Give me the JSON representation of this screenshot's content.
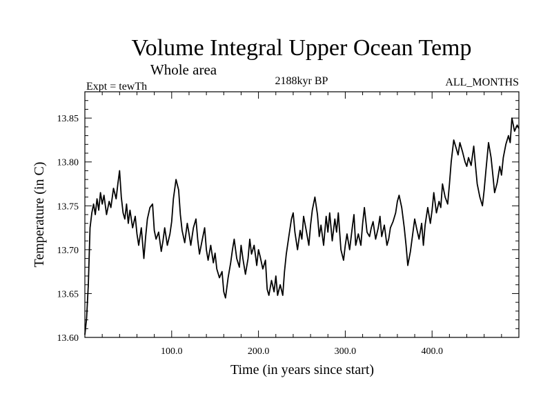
{
  "chart_data": {
    "type": "line",
    "title": "Volume Integral Upper Ocean Temp",
    "subtitle": "Whole area",
    "experiment_label": "Expt = tewTh",
    "period_label": "2188kyr BP",
    "months_label": "ALL_MONTHS",
    "xlabel": "Time (in years since start)",
    "ylabel": "Temperature (in C)",
    "xlim": [
      0,
      500
    ],
    "ylim": [
      13.6,
      13.88
    ],
    "x_ticks": [
      100,
      200,
      300,
      400
    ],
    "x_tick_labels": [
      "100.0",
      "200.0",
      "300.0",
      "400.0"
    ],
    "y_ticks": [
      13.6,
      13.65,
      13.7,
      13.75,
      13.8,
      13.85
    ],
    "y_tick_labels": [
      "13.60",
      "13.65",
      "13.70",
      "13.75",
      "13.80",
      "13.85"
    ],
    "series": [
      {
        "name": "Volume integral upper ocean temperature",
        "x": [
          0,
          2,
          4,
          6,
          8,
          10,
          12,
          14,
          16,
          18,
          20,
          22,
          25,
          28,
          30,
          33,
          36,
          38,
          40,
          42,
          44,
          46,
          48,
          50,
          52,
          55,
          58,
          60,
          62,
          65,
          68,
          70,
          72,
          75,
          78,
          80,
          82,
          85,
          88,
          90,
          92,
          95,
          98,
          100,
          102,
          105,
          108,
          110,
          112,
          115,
          118,
          120,
          122,
          125,
          128,
          130,
          132,
          135,
          138,
          140,
          142,
          145,
          148,
          150,
          152,
          155,
          158,
          160,
          162,
          165,
          168,
          170,
          172,
          175,
          178,
          180,
          182,
          185,
          188,
          190,
          192,
          195,
          198,
          200,
          202,
          205,
          208,
          210,
          212,
          215,
          218,
          220,
          222,
          225,
          228,
          230,
          232,
          235,
          238,
          240,
          242,
          245,
          248,
          250,
          252,
          255,
          258,
          260,
          262,
          265,
          268,
          270,
          272,
          275,
          278,
          280,
          282,
          285,
          288,
          290,
          292,
          295,
          298,
          300,
          302,
          305,
          308,
          310,
          312,
          315,
          318,
          320,
          322,
          325,
          328,
          330,
          332,
          335,
          338,
          340,
          342,
          345,
          348,
          350,
          352,
          355,
          358,
          360,
          362,
          365,
          368,
          370,
          372,
          375,
          378,
          380,
          382,
          385,
          388,
          390,
          392,
          395,
          398,
          400,
          402,
          405,
          408,
          410,
          412,
          415,
          418,
          420,
          422,
          425,
          428,
          430,
          432,
          435,
          438,
          440,
          442,
          445,
          448,
          450,
          452,
          455,
          458,
          460,
          462,
          465,
          468,
          470,
          472,
          475,
          478,
          480,
          482,
          485,
          488,
          490,
          492,
          495,
          498,
          500
        ],
        "values": [
          13.603,
          13.622,
          13.66,
          13.725,
          13.742,
          13.752,
          13.74,
          13.758,
          13.745,
          13.765,
          13.752,
          13.762,
          13.74,
          13.755,
          13.748,
          13.77,
          13.758,
          13.775,
          13.79,
          13.76,
          13.742,
          13.735,
          13.752,
          13.73,
          13.745,
          13.725,
          13.738,
          13.718,
          13.705,
          13.725,
          13.69,
          13.715,
          13.735,
          13.748,
          13.752,
          13.722,
          13.712,
          13.72,
          13.698,
          13.71,
          13.725,
          13.705,
          13.718,
          13.732,
          13.758,
          13.78,
          13.768,
          13.74,
          13.722,
          13.708,
          13.73,
          13.718,
          13.705,
          13.725,
          13.735,
          13.712,
          13.695,
          13.71,
          13.725,
          13.7,
          13.688,
          13.705,
          13.685,
          13.696,
          13.678,
          13.668,
          13.675,
          13.652,
          13.645,
          13.668,
          13.685,
          13.7,
          13.712,
          13.69,
          13.68,
          13.705,
          13.69,
          13.672,
          13.69,
          13.712,
          13.695,
          13.705,
          13.682,
          13.7,
          13.692,
          13.678,
          13.688,
          13.655,
          13.648,
          13.665,
          13.652,
          13.67,
          13.648,
          13.66,
          13.648,
          13.675,
          13.695,
          13.715,
          13.735,
          13.742,
          13.72,
          13.7,
          13.722,
          13.712,
          13.738,
          13.722,
          13.705,
          13.728,
          13.745,
          13.76,
          13.74,
          13.715,
          13.728,
          13.705,
          13.738,
          13.72,
          13.742,
          13.71,
          13.735,
          13.72,
          13.742,
          13.7,
          13.688,
          13.705,
          13.718,
          13.7,
          13.725,
          13.74,
          13.705,
          13.718,
          13.705,
          13.73,
          13.748,
          13.72,
          13.715,
          13.725,
          13.732,
          13.712,
          13.725,
          13.738,
          13.715,
          13.728,
          13.705,
          13.712,
          13.725,
          13.732,
          13.742,
          13.755,
          13.762,
          13.748,
          13.725,
          13.705,
          13.682,
          13.698,
          13.72,
          13.735,
          13.725,
          13.712,
          13.73,
          13.705,
          13.728,
          13.748,
          13.73,
          13.745,
          13.765,
          13.742,
          13.755,
          13.748,
          13.775,
          13.76,
          13.752,
          13.775,
          13.8,
          13.825,
          13.815,
          13.808,
          13.822,
          13.812,
          13.8,
          13.795,
          13.805,
          13.796,
          13.818,
          13.796,
          13.775,
          13.76,
          13.75,
          13.768,
          13.79,
          13.822,
          13.805,
          13.785,
          13.765,
          13.776,
          13.795,
          13.785,
          13.805,
          13.82,
          13.83,
          13.822,
          13.85,
          13.835,
          13.842,
          13.838
        ]
      }
    ]
  }
}
